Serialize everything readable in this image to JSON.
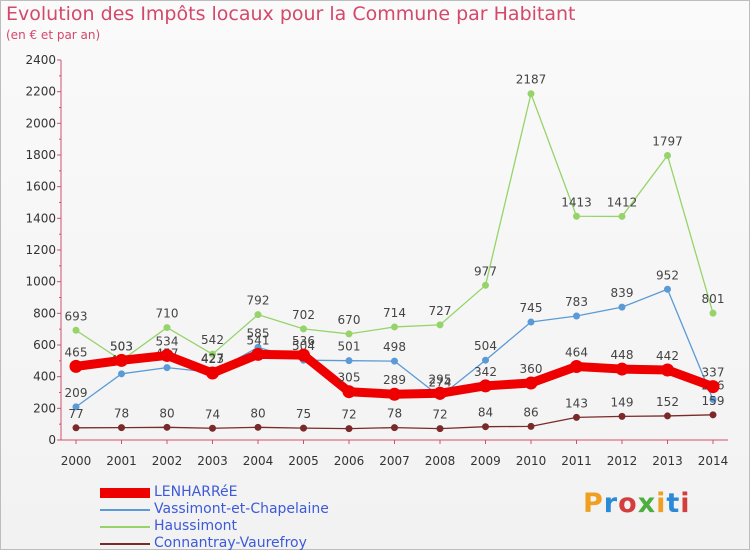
{
  "header": {
    "title": "Evolution des Impôts locaux pour la Commune par Habitant",
    "subtitle": "(en € et par an)"
  },
  "logo": {
    "text": "Proxiti",
    "colors": [
      "#f0a020",
      "#2a8ad8",
      "#d33d3d",
      "#4cae3e"
    ]
  },
  "chart_data": {
    "type": "line",
    "x": [
      2000,
      2001,
      2002,
      2003,
      2004,
      2005,
      2006,
      2007,
      2008,
      2009,
      2010,
      2011,
      2012,
      2013,
      2014
    ],
    "ylim": [
      0,
      2400
    ],
    "yticks": [
      0,
      200,
      400,
      600,
      800,
      1000,
      1200,
      1400,
      1600,
      1800,
      2000,
      2200,
      2400
    ],
    "grid": false,
    "legend_position": "bottom-left",
    "series": [
      {
        "name": "Haussimont",
        "color": "#96d46a",
        "values": [
          693,
          503,
          710,
          542,
          792,
          702,
          670,
          714,
          727,
          977,
          2187,
          1413,
          1412,
          1797,
          801
        ]
      },
      {
        "name": "Vassimont-et-Chapelaine",
        "color": "#5b9ad6",
        "values": [
          209,
          418,
          457,
          427,
          585,
          504,
          501,
          498,
          274,
          504,
          745,
          783,
          839,
          952,
          256
        ]
      },
      {
        "name": "Connantray-Vaurefroy",
        "color": "#7a2a2a",
        "values": [
          77,
          78,
          80,
          74,
          80,
          75,
          72,
          78,
          72,
          84,
          86,
          143,
          149,
          152,
          159
        ]
      },
      {
        "name": "LENHARRéE",
        "color": "#ee0000",
        "values": [
          465,
          503,
          534,
          423,
          541,
          536,
          305,
          289,
          295,
          342,
          360,
          464,
          448,
          442,
          337
        ]
      }
    ]
  }
}
